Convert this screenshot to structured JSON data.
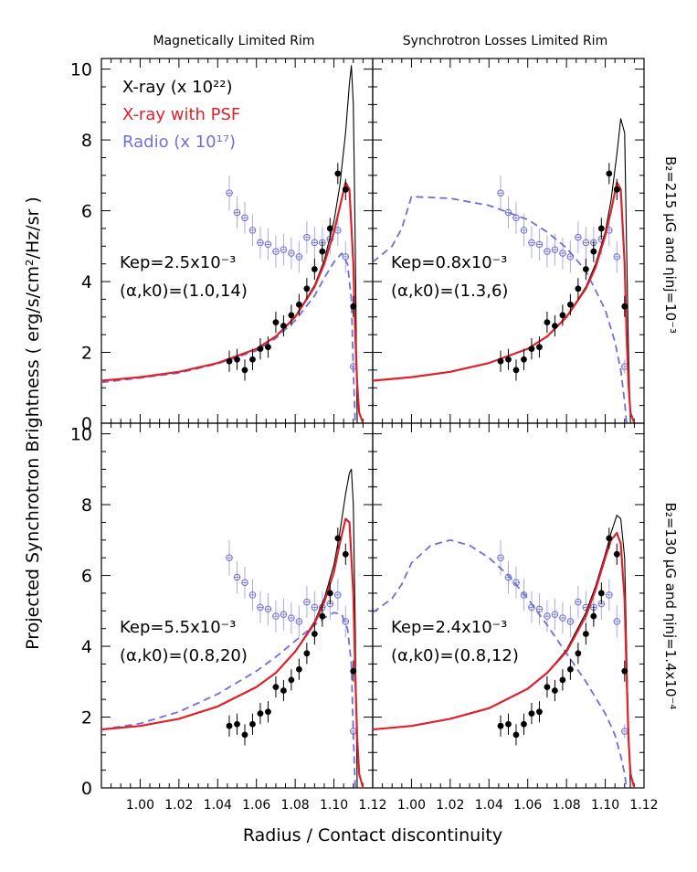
{
  "figure": {
    "col_titles": [
      "Magnetically Limited Rim",
      "Synchrotron Losses Limited Rim"
    ],
    "ylabel": "Projected Synchrotron Brightness ( erg/s/cm²/Hz/sr )",
    "xlabel": "Radius / Contact discontinuity",
    "row_labels": [
      "B₂=215 μG and ηinj=10⁻³",
      "B₂=130 μG and ηinj=1.4x10⁻⁴"
    ],
    "legend": [
      {
        "label": "X-ray (x 10²²)",
        "color": "#000000"
      },
      {
        "label": "X-ray with PSF",
        "color": "#e0202a"
      },
      {
        "label": "Radio (x 10¹⁷)",
        "color": "#6f6fd6"
      }
    ],
    "colors": {
      "xray": "#000000",
      "psf": "#e0202a",
      "radio": "#6f6fd6",
      "radio_err": "#a9a9ea"
    }
  },
  "chart_data": [
    {
      "type": "line",
      "panel": "top-left",
      "annotation": [
        "Kep=2.5x10⁻³",
        "(α,k0)=(1.0,14)"
      ],
      "xlim": [
        0.98,
        1.12
      ],
      "ylim": [
        0,
        10.3
      ],
      "xticks": [
        1.0,
        1.02,
        1.04,
        1.06,
        1.08,
        1.1,
        1.12
      ],
      "yticks": [
        0,
        2,
        4,
        6,
        8,
        10
      ],
      "series": [
        {
          "name": "X-ray (x 10²²)",
          "x": [
            0.98,
            1.0,
            1.02,
            1.04,
            1.06,
            1.07,
            1.08,
            1.09,
            1.095,
            1.1,
            1.103,
            1.106,
            1.108,
            1.109,
            1.11,
            1.111,
            1.112
          ],
          "y": [
            1.2,
            1.3,
            1.45,
            1.7,
            2.1,
            2.45,
            3.0,
            3.9,
            4.6,
            5.7,
            6.7,
            8.2,
            9.6,
            10.1,
            9.0,
            5.0,
            0
          ]
        },
        {
          "name": "X-ray with PSF",
          "x": [
            0.98,
            1.0,
            1.02,
            1.04,
            1.06,
            1.07,
            1.08,
            1.09,
            1.095,
            1.1,
            1.103,
            1.106,
            1.108,
            1.11,
            1.111,
            1.112,
            1.113,
            1.115
          ],
          "y": [
            1.2,
            1.3,
            1.45,
            1.7,
            2.1,
            2.45,
            3.0,
            3.85,
            4.5,
            5.4,
            6.1,
            6.8,
            6.6,
            4.5,
            2.5,
            1.1,
            0.3,
            0
          ]
        },
        {
          "name": "Radio (x 10¹⁷)",
          "x": [
            0.98,
            1.0,
            1.02,
            1.04,
            1.06,
            1.07,
            1.08,
            1.09,
            1.095,
            1.1,
            1.104,
            1.107,
            1.109,
            1.11,
            1.111
          ],
          "y": [
            1.15,
            1.28,
            1.42,
            1.68,
            2.05,
            2.4,
            2.9,
            3.6,
            4.1,
            4.55,
            4.8,
            4.5,
            3.5,
            1.5,
            0
          ]
        }
      ],
      "xray_points": {
        "x": [
          1.046,
          1.05,
          1.054,
          1.058,
          1.062,
          1.066,
          1.07,
          1.074,
          1.078,
          1.082,
          1.086,
          1.09,
          1.094,
          1.098,
          1.102,
          1.106,
          1.11
        ],
        "y": [
          1.75,
          1.8,
          1.5,
          1.8,
          2.1,
          2.15,
          2.85,
          2.75,
          3.05,
          3.35,
          3.8,
          4.35,
          4.85,
          5.5,
          7.05,
          6.6,
          3.3
        ],
        "err": [
          0.3,
          0.3,
          0.3,
          0.3,
          0.3,
          0.3,
          0.3,
          0.3,
          0.3,
          0.3,
          0.3,
          0.3,
          0.3,
          0.3,
          0.3,
          0.3,
          0.3
        ]
      },
      "radio_points": {
        "x": [
          1.046,
          1.05,
          1.054,
          1.058,
          1.062,
          1.066,
          1.07,
          1.074,
          1.078,
          1.082,
          1.086,
          1.09,
          1.094,
          1.098,
          1.102,
          1.106,
          1.11
        ],
        "y": [
          6.5,
          5.95,
          5.8,
          5.45,
          5.1,
          5.05,
          4.85,
          4.9,
          4.8,
          4.7,
          5.25,
          5.1,
          5.1,
          5.2,
          5.45,
          4.7,
          1.6
        ],
        "err": [
          0.5,
          0.45,
          0.45,
          0.45,
          0.45,
          0.45,
          0.45,
          0.45,
          0.45,
          0.45,
          0.45,
          0.45,
          0.45,
          0.45,
          0.45,
          0.45,
          0.2
        ]
      }
    },
    {
      "type": "line",
      "panel": "top-right",
      "annotation": [
        "Kep=0.8x10⁻³",
        "(α,k0)=(1.3,6)"
      ],
      "xlim": [
        0.98,
        1.12
      ],
      "ylim": [
        0,
        10.3
      ],
      "xticks": [
        1.0,
        1.02,
        1.04,
        1.06,
        1.08,
        1.1,
        1.12
      ],
      "yticks": [
        0,
        2,
        4,
        6,
        8,
        10
      ],
      "series": [
        {
          "name": "X-ray (x 10²²)",
          "x": [
            0.98,
            1.0,
            1.02,
            1.04,
            1.06,
            1.07,
            1.08,
            1.09,
            1.095,
            1.1,
            1.103,
            1.106,
            1.108,
            1.11,
            1.111,
            1.112,
            1.113
          ],
          "y": [
            1.2,
            1.3,
            1.45,
            1.7,
            2.1,
            2.45,
            3.0,
            3.85,
            4.5,
            5.4,
            6.3,
            7.6,
            8.6,
            8.2,
            5.0,
            2.0,
            0
          ]
        },
        {
          "name": "X-ray with PSF",
          "x": [
            0.98,
            1.0,
            1.02,
            1.04,
            1.06,
            1.07,
            1.08,
            1.09,
            1.095,
            1.1,
            1.103,
            1.106,
            1.108,
            1.11,
            1.111,
            1.112,
            1.113,
            1.115
          ],
          "y": [
            1.2,
            1.3,
            1.45,
            1.7,
            2.1,
            2.45,
            3.0,
            3.8,
            4.4,
            5.3,
            6.0,
            6.8,
            6.6,
            4.5,
            2.5,
            1.1,
            0.3,
            0
          ]
        },
        {
          "name": "Radio (x 10¹⁷)",
          "x": [
            0.98,
            0.99,
            0.995,
            1.0,
            1.02,
            1.04,
            1.06,
            1.07,
            1.08,
            1.09,
            1.1,
            1.105,
            1.108,
            1.11,
            1.111
          ],
          "y": [
            4.55,
            5.0,
            5.5,
            6.4,
            6.35,
            6.15,
            5.75,
            5.4,
            4.95,
            4.3,
            3.2,
            2.3,
            1.5,
            0.6,
            0
          ]
        }
      ],
      "xray_points": {
        "x": [
          1.046,
          1.05,
          1.054,
          1.058,
          1.062,
          1.066,
          1.07,
          1.074,
          1.078,
          1.082,
          1.086,
          1.09,
          1.094,
          1.098,
          1.102,
          1.106,
          1.11
        ],
        "y": [
          1.75,
          1.8,
          1.5,
          1.8,
          2.1,
          2.15,
          2.85,
          2.75,
          3.05,
          3.35,
          3.8,
          4.35,
          4.85,
          5.5,
          7.05,
          6.6,
          3.3
        ],
        "err": [
          0.3,
          0.3,
          0.3,
          0.3,
          0.3,
          0.3,
          0.3,
          0.3,
          0.3,
          0.3,
          0.3,
          0.3,
          0.3,
          0.3,
          0.3,
          0.3,
          0.3
        ]
      },
      "radio_points": {
        "x": [
          1.046,
          1.05,
          1.054,
          1.058,
          1.062,
          1.066,
          1.07,
          1.074,
          1.078,
          1.082,
          1.086,
          1.09,
          1.094,
          1.098,
          1.102,
          1.106,
          1.11
        ],
        "y": [
          6.5,
          5.95,
          5.8,
          5.45,
          5.1,
          5.05,
          4.85,
          4.9,
          4.8,
          4.7,
          5.25,
          5.1,
          5.1,
          5.2,
          5.45,
          4.7,
          1.6
        ],
        "err": [
          0.5,
          0.45,
          0.45,
          0.45,
          0.45,
          0.45,
          0.45,
          0.45,
          0.45,
          0.45,
          0.45,
          0.45,
          0.45,
          0.45,
          0.45,
          0.45,
          0.2
        ]
      }
    },
    {
      "type": "line",
      "panel": "bottom-left",
      "annotation": [
        "Kep=5.5x10⁻³",
        "(α,k0)=(0.8,20)"
      ],
      "xlim": [
        0.98,
        1.12
      ],
      "ylim": [
        0,
        10.3
      ],
      "xticks": [
        1.0,
        1.02,
        1.04,
        1.06,
        1.08,
        1.1,
        1.12
      ],
      "yticks": [
        0,
        2,
        4,
        6,
        8,
        10
      ],
      "series": [
        {
          "name": "X-ray (x 10²²)",
          "x": [
            0.98,
            1.0,
            1.02,
            1.04,
            1.06,
            1.07,
            1.08,
            1.09,
            1.095,
            1.1,
            1.103,
            1.106,
            1.108,
            1.109,
            1.11,
            1.111,
            1.112
          ],
          "y": [
            1.65,
            1.75,
            1.95,
            2.3,
            2.85,
            3.25,
            3.85,
            4.7,
            5.35,
            6.3,
            7.2,
            8.3,
            8.9,
            9.0,
            8.0,
            4.5,
            0
          ]
        },
        {
          "name": "X-ray with PSF",
          "x": [
            0.98,
            1.0,
            1.02,
            1.04,
            1.06,
            1.07,
            1.08,
            1.09,
            1.095,
            1.1,
            1.103,
            1.106,
            1.108,
            1.11,
            1.111,
            1.112,
            1.113,
            1.115
          ],
          "y": [
            1.65,
            1.75,
            1.95,
            2.3,
            2.85,
            3.25,
            3.85,
            4.65,
            5.25,
            6.1,
            6.9,
            7.6,
            7.5,
            5.5,
            3.2,
            1.4,
            0.4,
            0
          ]
        },
        {
          "name": "Radio (x 10¹⁷)",
          "x": [
            0.98,
            1.0,
            1.02,
            1.04,
            1.06,
            1.07,
            1.08,
            1.09,
            1.095,
            1.1,
            1.104,
            1.107,
            1.109,
            1.11,
            1.111
          ],
          "y": [
            1.65,
            1.82,
            2.15,
            2.65,
            3.3,
            3.7,
            4.15,
            4.6,
            4.8,
            4.95,
            4.9,
            4.5,
            3.5,
            1.5,
            0
          ]
        }
      ],
      "xray_points": {
        "x": [
          1.046,
          1.05,
          1.054,
          1.058,
          1.062,
          1.066,
          1.07,
          1.074,
          1.078,
          1.082,
          1.086,
          1.09,
          1.094,
          1.098,
          1.102,
          1.106,
          1.11
        ],
        "y": [
          1.75,
          1.8,
          1.5,
          1.8,
          2.1,
          2.15,
          2.85,
          2.75,
          3.05,
          3.35,
          3.8,
          4.35,
          4.85,
          5.5,
          7.05,
          6.6,
          3.3
        ],
        "err": [
          0.3,
          0.3,
          0.3,
          0.3,
          0.3,
          0.3,
          0.3,
          0.3,
          0.3,
          0.3,
          0.3,
          0.3,
          0.3,
          0.3,
          0.3,
          0.3,
          0.3
        ]
      },
      "radio_points": {
        "x": [
          1.046,
          1.05,
          1.054,
          1.058,
          1.062,
          1.066,
          1.07,
          1.074,
          1.078,
          1.082,
          1.086,
          1.09,
          1.094,
          1.098,
          1.102,
          1.106,
          1.11
        ],
        "y": [
          6.5,
          5.95,
          5.8,
          5.45,
          5.1,
          5.05,
          4.85,
          4.9,
          4.8,
          4.7,
          5.25,
          5.1,
          5.1,
          5.2,
          5.45,
          4.7,
          1.6
        ],
        "err": [
          0.5,
          0.45,
          0.45,
          0.45,
          0.45,
          0.45,
          0.45,
          0.45,
          0.45,
          0.45,
          0.45,
          0.45,
          0.45,
          0.45,
          0.45,
          0.45,
          0.2
        ]
      }
    },
    {
      "type": "line",
      "panel": "bottom-right",
      "annotation": [
        "Kep=2.4x10⁻³",
        "(α,k0)=(0.8,12)"
      ],
      "xlim": [
        0.98,
        1.12
      ],
      "ylim": [
        0,
        10.3
      ],
      "xticks": [
        1.0,
        1.02,
        1.04,
        1.06,
        1.08,
        1.1,
        1.12
      ],
      "yticks": [
        0,
        2,
        4,
        6,
        8,
        10
      ],
      "series": [
        {
          "name": "X-ray (x 10²²)",
          "x": [
            0.98,
            1.0,
            1.02,
            1.04,
            1.06,
            1.07,
            1.08,
            1.09,
            1.095,
            1.1,
            1.103,
            1.106,
            1.108,
            1.11,
            1.111,
            1.112,
            1.113
          ],
          "y": [
            1.65,
            1.75,
            1.95,
            2.25,
            2.8,
            3.25,
            3.9,
            4.95,
            5.7,
            6.6,
            7.2,
            7.7,
            7.6,
            6.5,
            4.0,
            1.5,
            0
          ]
        },
        {
          "name": "X-ray with PSF",
          "x": [
            0.98,
            1.0,
            1.02,
            1.04,
            1.06,
            1.07,
            1.08,
            1.09,
            1.095,
            1.1,
            1.103,
            1.106,
            1.108,
            1.11,
            1.111,
            1.112,
            1.113,
            1.115
          ],
          "y": [
            1.65,
            1.75,
            1.95,
            2.25,
            2.8,
            3.25,
            3.85,
            4.85,
            5.6,
            6.5,
            7.0,
            7.2,
            6.9,
            5.3,
            3.2,
            1.4,
            0.4,
            0
          ]
        },
        {
          "name": "Radio (x 10¹⁷)",
          "x": [
            0.98,
            0.99,
            0.995,
            1.0,
            1.01,
            1.02,
            1.03,
            1.04,
            1.05,
            1.06,
            1.07,
            1.08,
            1.09,
            1.1,
            1.105,
            1.108,
            1.11,
            1.111
          ],
          "y": [
            4.95,
            5.35,
            5.75,
            6.35,
            6.85,
            7.0,
            6.85,
            6.5,
            6.0,
            5.35,
            4.6,
            3.8,
            3.0,
            2.1,
            1.5,
            0.9,
            0.4,
            0
          ]
        }
      ],
      "xray_points": {
        "x": [
          1.046,
          1.05,
          1.054,
          1.058,
          1.062,
          1.066,
          1.07,
          1.074,
          1.078,
          1.082,
          1.086,
          1.09,
          1.094,
          1.098,
          1.102,
          1.106,
          1.11
        ],
        "y": [
          1.75,
          1.8,
          1.5,
          1.8,
          2.1,
          2.15,
          2.85,
          2.75,
          3.05,
          3.35,
          3.8,
          4.35,
          4.85,
          5.5,
          7.05,
          6.6,
          3.3
        ],
        "err": [
          0.3,
          0.3,
          0.3,
          0.3,
          0.3,
          0.3,
          0.3,
          0.3,
          0.3,
          0.3,
          0.3,
          0.3,
          0.3,
          0.3,
          0.3,
          0.3,
          0.3
        ]
      },
      "radio_points": {
        "x": [
          1.046,
          1.05,
          1.054,
          1.058,
          1.062,
          1.066,
          1.07,
          1.074,
          1.078,
          1.082,
          1.086,
          1.09,
          1.094,
          1.098,
          1.102,
          1.106,
          1.11
        ],
        "y": [
          6.5,
          5.95,
          5.8,
          5.45,
          5.1,
          5.05,
          4.85,
          4.9,
          4.8,
          4.7,
          5.25,
          5.1,
          5.1,
          5.2,
          5.45,
          4.7,
          1.6
        ],
        "err": [
          0.5,
          0.45,
          0.45,
          0.45,
          0.45,
          0.45,
          0.45,
          0.45,
          0.45,
          0.45,
          0.45,
          0.45,
          0.45,
          0.45,
          0.45,
          0.45,
          0.2
        ]
      }
    }
  ]
}
